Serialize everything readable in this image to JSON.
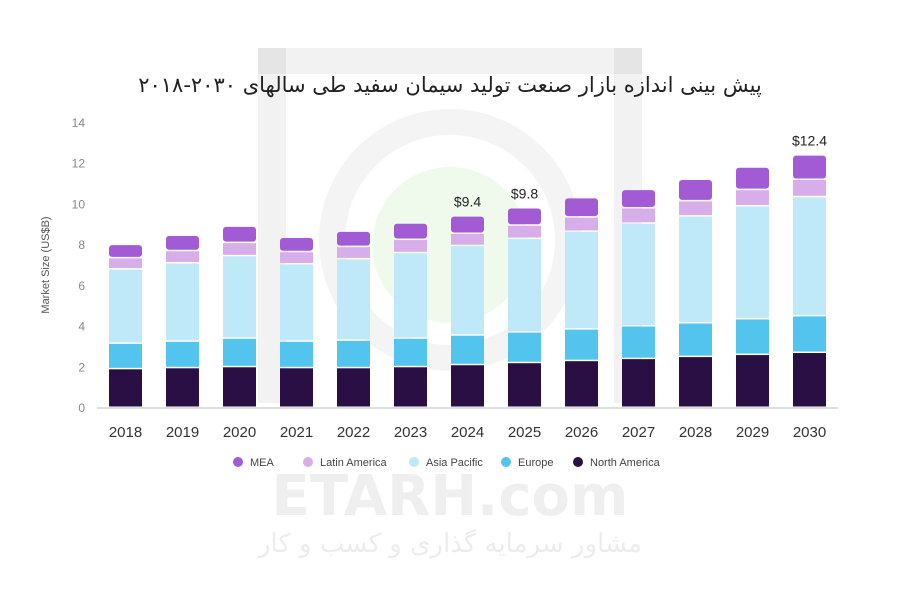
{
  "watermark": {
    "brand": "ETARH.com",
    "tagline": "مشاور سرمایه گذاری و کسب و کار"
  },
  "colors": {
    "North America": "#2a0f45",
    "Europe": "#52c4ee",
    "Asia Pacific": "#bfe9f9",
    "Latin America": "#d7aee9",
    "MEA": "#a35bd5"
  },
  "chart_data": {
    "type": "bar",
    "stacked": true,
    "title": "پیش بینی اندازه بازار صنعت تولید سیمان سفید طی سالهای ۲۰۳۰-۲۰۱۸",
    "xlabel": "",
    "ylabel": "Market Size (US$B)",
    "ylim": [
      0,
      14
    ],
    "yticks": [
      "0",
      "2",
      "4",
      "6",
      "8",
      "10",
      "12",
      "14"
    ],
    "categories": [
      "2018",
      "2019",
      "2020",
      "2021",
      "2022",
      "2023",
      "2024",
      "2025",
      "2026",
      "2027",
      "2028",
      "2029",
      "2030"
    ],
    "grid": false,
    "legend_position": "bottom",
    "series": [
      {
        "name": "North America",
        "values": [
          1.9,
          1.95,
          2.0,
          1.95,
          1.95,
          2.0,
          2.1,
          2.2,
          2.3,
          2.4,
          2.5,
          2.6,
          2.7
        ]
      },
      {
        "name": "Europe",
        "values": [
          1.25,
          1.3,
          1.4,
          1.3,
          1.35,
          1.4,
          1.45,
          1.5,
          1.55,
          1.6,
          1.65,
          1.75,
          1.8
        ]
      },
      {
        "name": "Asia Pacific",
        "values": [
          3.65,
          3.85,
          4.05,
          3.8,
          4.0,
          4.2,
          4.4,
          4.6,
          4.8,
          5.05,
          5.25,
          5.55,
          5.85
        ]
      },
      {
        "name": "Latin America",
        "values": [
          0.55,
          0.6,
          0.65,
          0.6,
          0.6,
          0.65,
          0.6,
          0.65,
          0.7,
          0.75,
          0.75,
          0.8,
          0.85
        ]
      },
      {
        "name": "MEA",
        "values": [
          0.65,
          0.75,
          0.8,
          0.7,
          0.75,
          0.8,
          0.85,
          0.85,
          0.95,
          0.9,
          1.05,
          1.1,
          1.2
        ]
      }
    ],
    "data_labels": [
      {
        "category": "2024",
        "text": "$9.4"
      },
      {
        "category": "2025",
        "text": "$9.8"
      },
      {
        "category": "2030",
        "text": "$12.4"
      }
    ],
    "legend": [
      "MEA",
      "Latin America",
      "Asia Pacific",
      "Europe",
      "North America"
    ]
  }
}
